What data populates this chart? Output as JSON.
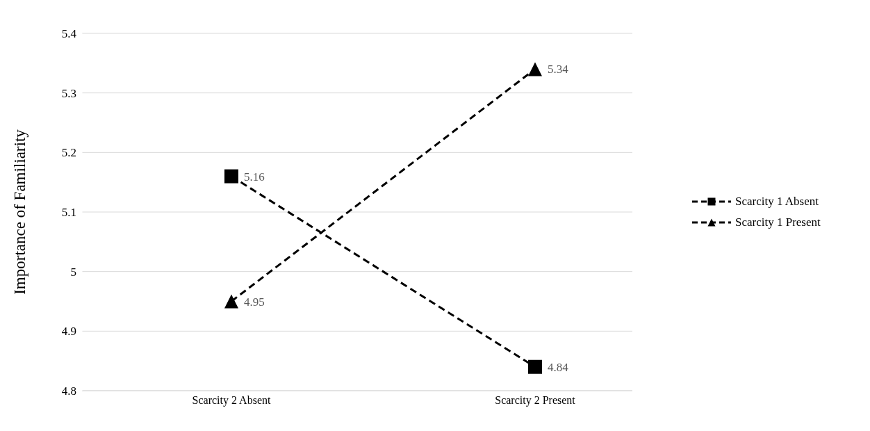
{
  "chart_data": {
    "type": "line",
    "ylabel": "Importance of Familiarity",
    "categories": [
      "Scarcity 2 Absent",
      "Scarcity 2 Present"
    ],
    "series": [
      {
        "name": "Scarcity 1 Absent",
        "color": "#000000",
        "marker": "square",
        "values": [
          5.16,
          4.84
        ]
      },
      {
        "name": "Scarcity 1 Present",
        "color": "#000000",
        "marker": "triangle",
        "values": [
          4.95,
          5.34
        ]
      }
    ],
    "ylim": [
      4.8,
      5.4
    ],
    "yticks": [
      4.8,
      4.9,
      5,
      5.1,
      5.2,
      5.3,
      5.4
    ],
    "grid": "y",
    "legend": "right",
    "line_style": "dashed",
    "data_labels": true
  }
}
